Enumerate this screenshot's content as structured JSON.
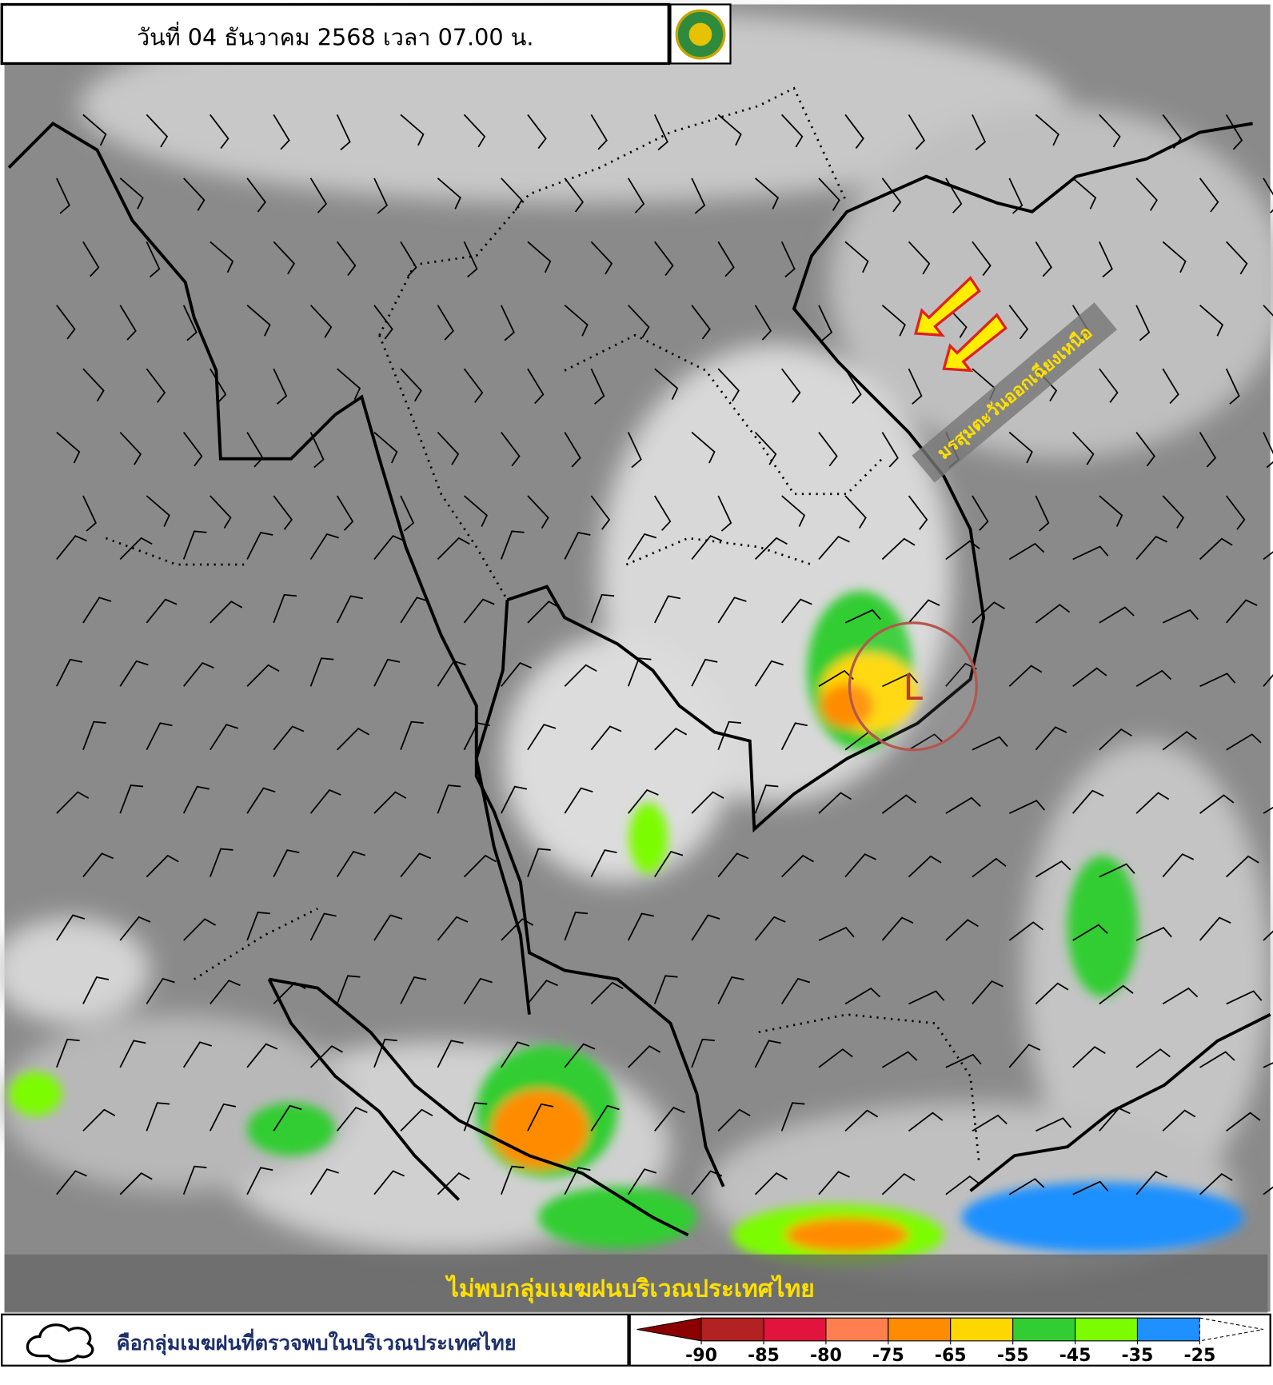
{
  "header": {
    "title": "วันที่ 04 ธันวาคม 2568 เวลา 07.00 น."
  },
  "annotations": {
    "monsoon": "มรสุมตะวันออกเฉียงเหนือ",
    "low": "L"
  },
  "banner": "ไม่พบกลุ่มเมฆฝนบริเวณประเทศไทย",
  "legend": {
    "text": "คือกลุ่มเมฆฝนที่ตรวจพบในบริเวณประเทศไทย",
    "colorbar": {
      "low_color": "#8b0000",
      "high_color": "#ffffff",
      "colors": [
        "#b22222",
        "#e0143c",
        "#ff7f50",
        "#ff8c00",
        "#ffd700",
        "#32cd32",
        "#7cfc00",
        "#1e90ff"
      ],
      "ticks": [
        -90,
        -85,
        -80,
        -75,
        -65,
        -55,
        -45,
        -35,
        -25
      ]
    }
  }
}
